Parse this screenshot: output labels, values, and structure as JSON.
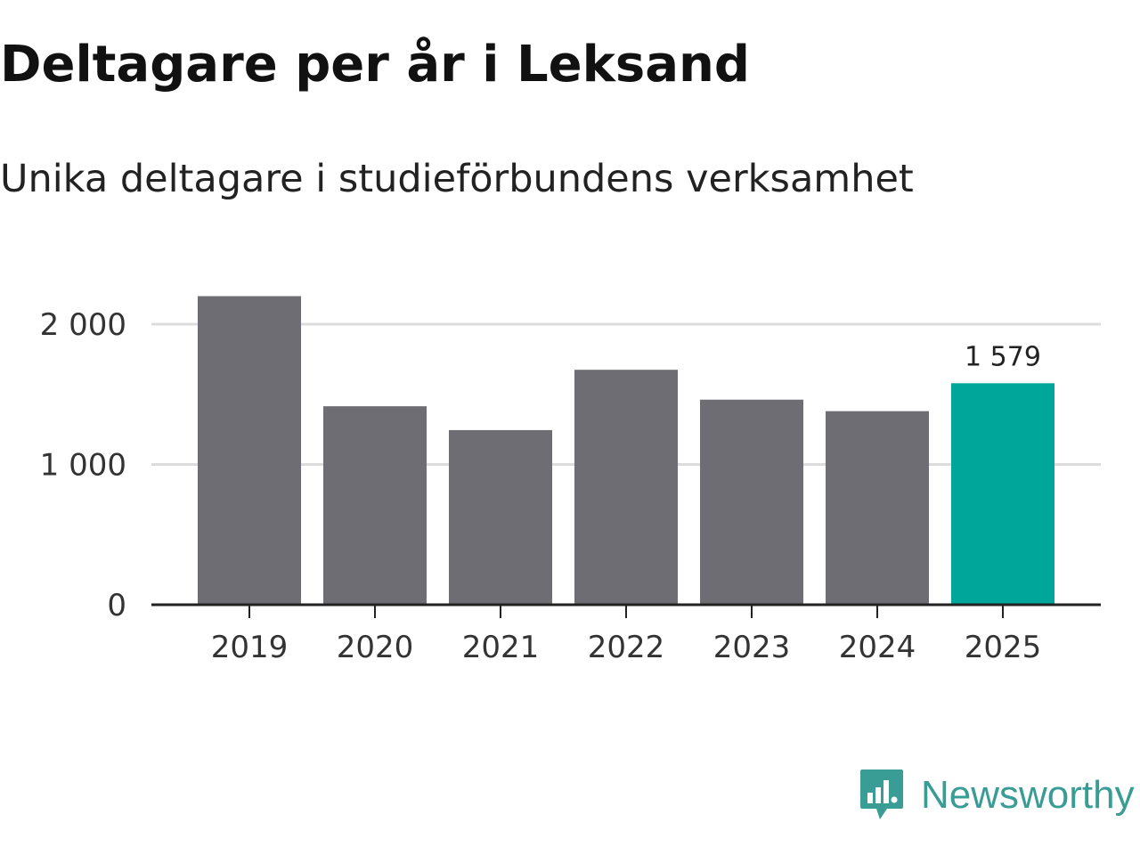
{
  "chart_data": {
    "type": "bar",
    "title": "Deltagare per år i Leksand",
    "subtitle": "Unika deltagare i studieförbundens verksamhet",
    "categories": [
      "2019",
      "2020",
      "2021",
      "2022",
      "2023",
      "2024",
      "2025"
    ],
    "values": [
      2200,
      1415,
      1245,
      1675,
      1462,
      1380,
      1579
    ],
    "highlight_index": 6,
    "data_labels": [
      {
        "index": 6,
        "text": "1 579"
      }
    ],
    "y_ticks": [
      {
        "value": 0,
        "label": "0"
      },
      {
        "value": 1000,
        "label": "1 000"
      },
      {
        "value": 2000,
        "label": "2 000"
      }
    ],
    "ylim": [
      0,
      2000
    ],
    "grid": true,
    "xlabel": "",
    "ylabel": "",
    "colors": {
      "bar": "#6e6d73",
      "highlight": "#00a69a",
      "grid": "#dcdcdc",
      "axis": "#222222"
    }
  },
  "brand": {
    "name": "Newsworthy",
    "icon": "newsworthy-logo-icon",
    "color": "#3a9d95"
  }
}
